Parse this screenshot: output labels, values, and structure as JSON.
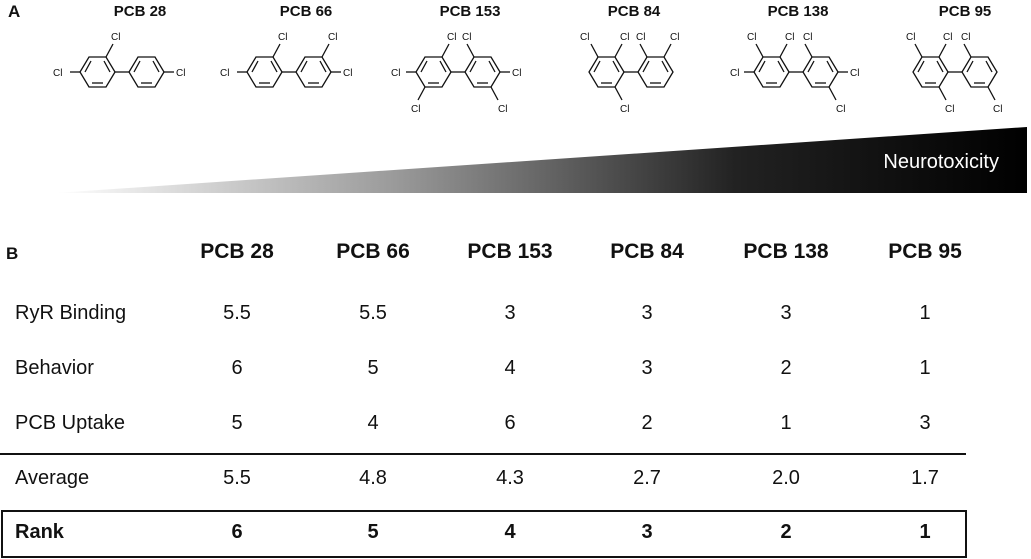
{
  "panel_a": {
    "label": "A",
    "gradient_label": "Neurotoxicity",
    "congeners": [
      {
        "name": "PCB 28",
        "substituents": [
          "Cl",
          "Cl",
          "Cl"
        ]
      },
      {
        "name": "PCB 66",
        "substituents": [
          "Cl",
          "Cl",
          "Cl",
          "Cl"
        ]
      },
      {
        "name": "PCB 153",
        "substituents": [
          "Cl",
          "Cl",
          "Cl",
          "Cl",
          "Cl",
          "Cl"
        ]
      },
      {
        "name": "PCB 84",
        "substituents": [
          "Cl",
          "Cl",
          "Cl",
          "Cl",
          "Cl"
        ]
      },
      {
        "name": "PCB 138",
        "substituents": [
          "Cl",
          "Cl",
          "Cl",
          "Cl",
          "Cl",
          "Cl"
        ]
      },
      {
        "name": "PCB 95",
        "substituents": [
          "Cl",
          "Cl",
          "Cl",
          "Cl",
          "Cl"
        ]
      }
    ]
  },
  "panel_b": {
    "label": "B",
    "columns": [
      "PCB 28",
      "PCB 66",
      "PCB 153",
      "PCB 84",
      "PCB 138",
      "PCB 95"
    ],
    "rows": [
      {
        "label": "RyR Binding",
        "values": [
          "5.5",
          "5.5",
          "3",
          "3",
          "3",
          "1"
        ]
      },
      {
        "label": "Behavior",
        "values": [
          "6",
          "5",
          "4",
          "3",
          "2",
          "1"
        ]
      },
      {
        "label": "PCB Uptake",
        "values": [
          "5",
          "4",
          "6",
          "2",
          "1",
          "3"
        ]
      },
      {
        "label": "Average",
        "values": [
          "5.5",
          "4.8",
          "4.3",
          "2.7",
          "2.0",
          "1.7"
        ]
      },
      {
        "label": "Rank",
        "values": [
          "6",
          "5",
          "4",
          "3",
          "2",
          "1"
        ]
      }
    ]
  }
}
